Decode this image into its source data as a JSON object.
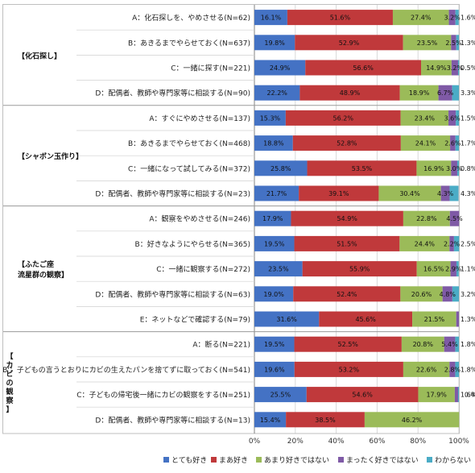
{
  "chart_data": {
    "type": "bar",
    "orientation": "horizontal",
    "stacked": true,
    "percent": true,
    "xlim": [
      0,
      100
    ],
    "x_ticks": [
      "0%",
      "20%",
      "40%",
      "60%",
      "80%",
      "100%"
    ],
    "grid": true,
    "legend_position": "bottom",
    "series": [
      {
        "name": "とても好き",
        "color": "#4472C4"
      },
      {
        "name": "まあ好き",
        "color": "#C0393B"
      },
      {
        "name": "あまり好きではない",
        "color": "#9BBB59"
      },
      {
        "name": "まったく好きではない",
        "color": "#7F5AA6"
      },
      {
        "name": "わからない",
        "color": "#4BACC6"
      }
    ],
    "groups": [
      {
        "label": "【化石探し】",
        "items": [
          {
            "label": "A：化石探しを、やめさせる(N=62)",
            "values": [
              16.1,
              51.6,
              27.4,
              3.2,
              1.6
            ],
            "labels": [
              "16.1%",
              "51.6%",
              "27.4%",
              "3.2%",
              "1.6%"
            ]
          },
          {
            "label": "B：あきるまでやらせておく(N=637)",
            "values": [
              19.8,
              52.9,
              23.5,
              2.5,
              1.3
            ],
            "labels": [
              "19.8%",
              "52.9%",
              "23.5%",
              "2.5%",
              "1.3%"
            ]
          },
          {
            "label": "C：一緒に探す(N=221)",
            "values": [
              24.9,
              56.6,
              14.9,
              3.2,
              0.5
            ],
            "labels": [
              "24.9%",
              "56.6%",
              "14.9%",
              "3.2%",
              "0.5%"
            ]
          },
          {
            "label": "D：配偶者、教師や専門家等に相談する(N=90)",
            "values": [
              22.2,
              48.9,
              18.9,
              6.7,
              3.3
            ],
            "labels": [
              "22.2%",
              "48.9%",
              "18.9%",
              "6.7%",
              "3.3%"
            ]
          }
        ]
      },
      {
        "label": "【シャボン玉作り】",
        "items": [
          {
            "label": "A：すぐにやめさせる(N=137)",
            "values": [
              15.3,
              56.2,
              23.4,
              3.6,
              1.5
            ],
            "labels": [
              "15.3%",
              "56.2%",
              "23.4%",
              "3.6%",
              "1.5%"
            ]
          },
          {
            "label": "B：あきるまでやらせておく(N=468)",
            "values": [
              18.8,
              52.8,
              24.1,
              2.6,
              1.7
            ],
            "labels": [
              "18.8%",
              "52.8%",
              "24.1%",
              "2.6%",
              "1.7%"
            ]
          },
          {
            "label": "C：一緒になって試してみる(N=372)",
            "values": [
              25.8,
              53.5,
              16.9,
              3.0,
              0.8
            ],
            "labels": [
              "25.8%",
              "53.5%",
              "16.9%",
              "3.0%",
              "0.8%"
            ]
          },
          {
            "label": "D：配偶者、教師や専門家等に相談する(N=23)",
            "values": [
              21.7,
              39.1,
              30.4,
              4.3,
              4.3
            ],
            "labels": [
              "21.7%",
              "39.1%",
              "30.4%",
              "4.3%",
              "4.3%"
            ]
          }
        ]
      },
      {
        "label": "【ふたご座\n流星群の観察】",
        "items": [
          {
            "label": "A：観察をやめさせる(N=246)",
            "values": [
              17.9,
              54.9,
              22.8,
              4.5,
              0
            ],
            "labels": [
              "17.9%",
              "54.9%",
              "22.8%",
              "4.5%",
              ""
            ]
          },
          {
            "label": "B：好きなようにやらせる(N=365)",
            "values": [
              19.5,
              51.5,
              24.4,
              2.2,
              2.5
            ],
            "labels": [
              "19.5%",
              "51.5%",
              "24.4%",
              "2.2%",
              "2.5%"
            ]
          },
          {
            "label": "C：一緒に観察する(N=272)",
            "values": [
              23.5,
              55.9,
              16.5,
              2.9,
              1.1
            ],
            "labels": [
              "23.5%",
              "55.9%",
              "16.5%",
              "2.9%",
              "1.1%"
            ]
          },
          {
            "label": "D：配偶者、教師や専門家等に相談する(N=63)",
            "values": [
              19.0,
              52.4,
              20.6,
              4.8,
              3.2
            ],
            "labels": [
              "19.0%",
              "52.4%",
              "20.6%",
              "4.8%",
              "3.2%"
            ]
          },
          {
            "label": "E：ネットなどで確認する(N=79)",
            "values": [
              31.6,
              45.6,
              21.5,
              1.3,
              0
            ],
            "labels": [
              "31.6%",
              "45.6%",
              "21.5%",
              "1.3%",
              ""
            ]
          }
        ]
      },
      {
        "label": "【カビの観察】",
        "vertical_label": true,
        "items": [
          {
            "label": "A：断る(N=221)",
            "values": [
              19.5,
              52.5,
              20.8,
              5.4,
              1.8
            ],
            "labels": [
              "19.5%",
              "52.5%",
              "20.8%",
              "5.4%",
              "1.8%"
            ]
          },
          {
            "label": "B'：子どもの言うとおりにカビの生えたパンを捨てずに取っておく(N=541)",
            "values": [
              19.6,
              53.2,
              22.6,
              2.8,
              1.8
            ],
            "labels": [
              "19.6%",
              "53.2%",
              "22.6%",
              "2.8%",
              "1.8%"
            ]
          },
          {
            "label": "C：子どもの帰宅後一緒にカビの観察をする(N=251)",
            "values": [
              25.5,
              54.6,
              17.9,
              1.6,
              0.4
            ],
            "labels": [
              "25.5%",
              "54.6%",
              "17.9%",
              "1.6%",
              "0.4%"
            ]
          },
          {
            "label": "D：配偶者、教師や専門家等に相談する(N=13)",
            "values": [
              15.4,
              38.5,
              46.2,
              0,
              0
            ],
            "labels": [
              "15.4%",
              "38.5%",
              "46.2%",
              "",
              ""
            ]
          }
        ]
      }
    ]
  }
}
